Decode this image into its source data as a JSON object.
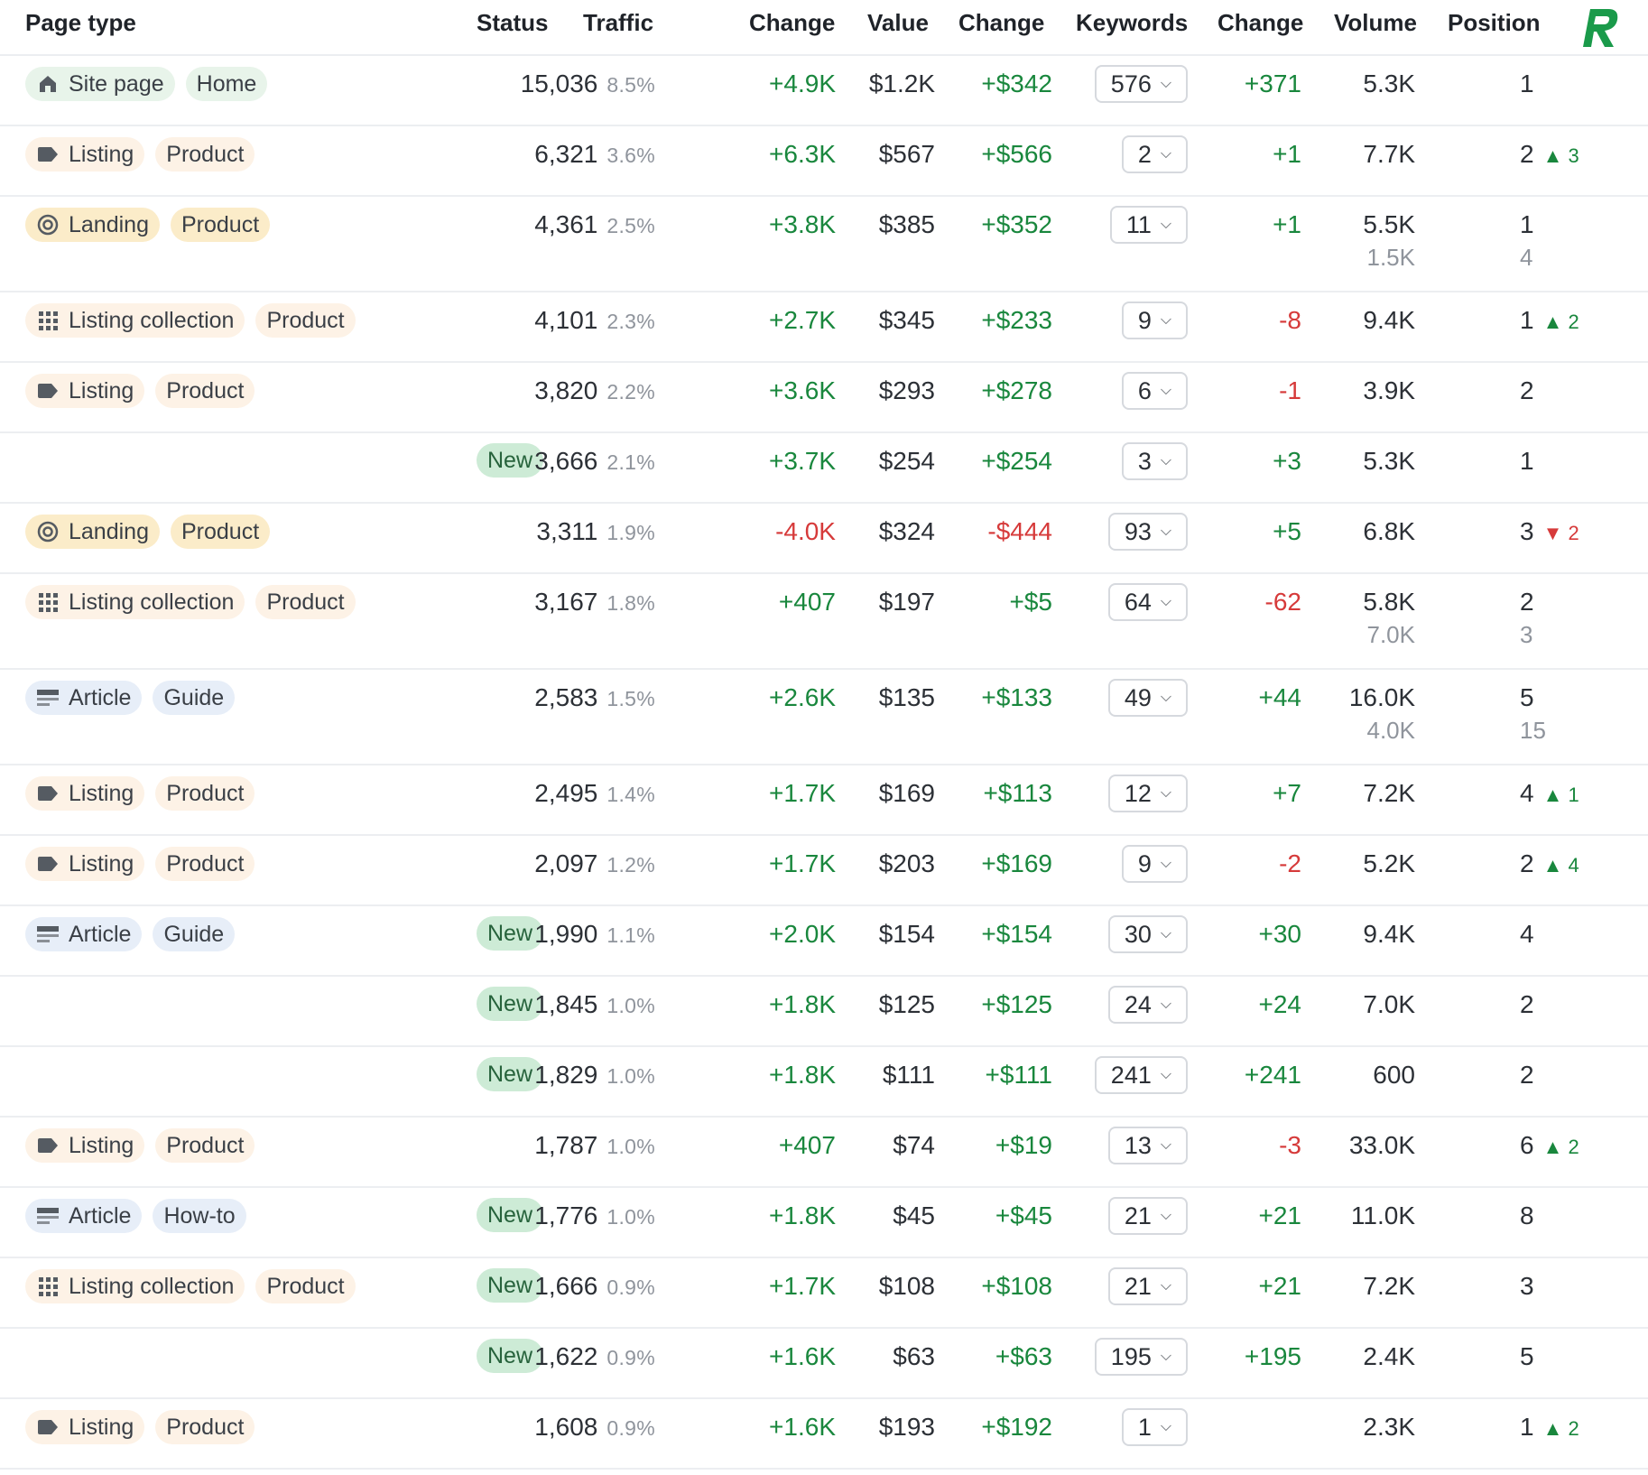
{
  "header": {
    "page_type": "Page type",
    "status": "Status",
    "traffic": "Traffic",
    "change1": "Change",
    "value": "Value",
    "change2": "Change",
    "keywords": "Keywords",
    "change3": "Change",
    "volume": "Volume",
    "position": "Position"
  },
  "logo": {
    "letter": "R",
    "color": "#1a9a4a"
  },
  "colors": {
    "positive": "#19873d",
    "negative": "#d63a3a",
    "new_badge": "#cdebd6"
  },
  "rows": [
    {
      "tag1": "Site page",
      "tag2": "Home",
      "icon": "home-icon",
      "status": "",
      "traffic": "15,036",
      "pct": "8.5%",
      "change": "+4.9K",
      "value": "$1.2K",
      "value_change": "+$342",
      "keywords": "576",
      "kw_change": "+371",
      "volume": "5.3K",
      "volume2": "",
      "position": "1",
      "position2": "",
      "pos_delta": ""
    },
    {
      "tag1": "Listing",
      "tag2": "Product",
      "icon": "tag-icon",
      "status": "",
      "traffic": "6,321",
      "pct": "3.6%",
      "change": "+6.3K",
      "value": "$567",
      "value_change": "+$566",
      "keywords": "2",
      "kw_change": "+1",
      "volume": "7.7K",
      "volume2": "",
      "position": "2",
      "position2": "",
      "pos_delta": "3"
    },
    {
      "tag1": "Landing",
      "tag2": "Product",
      "icon": "target-icon",
      "status": "",
      "traffic": "4,361",
      "pct": "2.5%",
      "change": "+3.8K",
      "value": "$385",
      "value_change": "+$352",
      "keywords": "11",
      "kw_change": "+1",
      "volume": "5.5K",
      "volume2": "1.5K",
      "position": "1",
      "position2": "4",
      "pos_delta": ""
    },
    {
      "tag1": "Listing collection",
      "tag2": "Product",
      "icon": "grid-icon",
      "status": "",
      "traffic": "4,101",
      "pct": "2.3%",
      "change": "+2.7K",
      "value": "$345",
      "value_change": "+$233",
      "keywords": "9",
      "kw_change": "-8",
      "volume": "9.4K",
      "volume2": "",
      "position": "1",
      "position2": "",
      "pos_delta": "2"
    },
    {
      "tag1": "Listing",
      "tag2": "Product",
      "icon": "tag-icon",
      "status": "",
      "traffic": "3,820",
      "pct": "2.2%",
      "change": "+3.6K",
      "value": "$293",
      "value_change": "+$278",
      "keywords": "6",
      "kw_change": "-1",
      "volume": "3.9K",
      "volume2": "",
      "position": "2",
      "position2": "",
      "pos_delta": ""
    },
    {
      "tag1": "",
      "tag2": "",
      "icon": "",
      "status": "New",
      "traffic": "3,666",
      "pct": "2.1%",
      "change": "+3.7K",
      "value": "$254",
      "value_change": "+$254",
      "keywords": "3",
      "kw_change": "+3",
      "volume": "5.3K",
      "volume2": "",
      "position": "1",
      "position2": "",
      "pos_delta": ""
    },
    {
      "tag1": "Landing",
      "tag2": "Product",
      "icon": "target-icon",
      "status": "",
      "traffic": "3,311",
      "pct": "1.9%",
      "change": "-4.0K",
      "value": "$324",
      "value_change": "-$444",
      "keywords": "93",
      "kw_change": "+5",
      "volume": "6.8K",
      "volume2": "",
      "position": "3",
      "position2": "",
      "pos_delta": "2",
      "pos_dir": "down"
    },
    {
      "tag1": "Listing collection",
      "tag2": "Product",
      "icon": "grid-icon",
      "status": "",
      "traffic": "3,167",
      "pct": "1.8%",
      "change": "+407",
      "value": "$197",
      "value_change": "+$5",
      "keywords": "64",
      "kw_change": "-62",
      "volume": "5.8K",
      "volume2": "7.0K",
      "position": "2",
      "position2": "3",
      "pos_delta": ""
    },
    {
      "tag1": "Article",
      "tag2": "Guide",
      "icon": "article-icon",
      "status": "",
      "traffic": "2,583",
      "pct": "1.5%",
      "change": "+2.6K",
      "value": "$135",
      "value_change": "+$133",
      "keywords": "49",
      "kw_change": "+44",
      "volume": "16.0K",
      "volume2": "4.0K",
      "position": "5",
      "position2": "15",
      "pos_delta": ""
    },
    {
      "tag1": "Listing",
      "tag2": "Product",
      "icon": "tag-icon",
      "status": "",
      "traffic": "2,495",
      "pct": "1.4%",
      "change": "+1.7K",
      "value": "$169",
      "value_change": "+$113",
      "keywords": "12",
      "kw_change": "+7",
      "volume": "7.2K",
      "volume2": "",
      "position": "4",
      "position2": "",
      "pos_delta": "1"
    },
    {
      "tag1": "Listing",
      "tag2": "Product",
      "icon": "tag-icon",
      "status": "",
      "traffic": "2,097",
      "pct": "1.2%",
      "change": "+1.7K",
      "value": "$203",
      "value_change": "+$169",
      "keywords": "9",
      "kw_change": "-2",
      "volume": "5.2K",
      "volume2": "",
      "position": "2",
      "position2": "",
      "pos_delta": "4"
    },
    {
      "tag1": "Article",
      "tag2": "Guide",
      "icon": "article-icon",
      "status": "New",
      "traffic": "1,990",
      "pct": "1.1%",
      "change": "+2.0K",
      "value": "$154",
      "value_change": "+$154",
      "keywords": "30",
      "kw_change": "+30",
      "volume": "9.4K",
      "volume2": "",
      "position": "4",
      "position2": "",
      "pos_delta": ""
    },
    {
      "tag1": "",
      "tag2": "",
      "icon": "",
      "status": "New",
      "traffic": "1,845",
      "pct": "1.0%",
      "change": "+1.8K",
      "value": "$125",
      "value_change": "+$125",
      "keywords": "24",
      "kw_change": "+24",
      "volume": "7.0K",
      "volume2": "",
      "position": "2",
      "position2": "",
      "pos_delta": ""
    },
    {
      "tag1": "",
      "tag2": "",
      "icon": "",
      "status": "New",
      "traffic": "1,829",
      "pct": "1.0%",
      "change": "+1.8K",
      "value": "$111",
      "value_change": "+$111",
      "keywords": "241",
      "kw_change": "+241",
      "volume": "600",
      "volume2": "",
      "position": "2",
      "position2": "",
      "pos_delta": ""
    },
    {
      "tag1": "Listing",
      "tag2": "Product",
      "icon": "tag-icon",
      "status": "",
      "traffic": "1,787",
      "pct": "1.0%",
      "change": "+407",
      "value": "$74",
      "value_change": "+$19",
      "keywords": "13",
      "kw_change": "-3",
      "volume": "33.0K",
      "volume2": "",
      "position": "6",
      "position2": "",
      "pos_delta": "2"
    },
    {
      "tag1": "Article",
      "tag2": "How-to",
      "icon": "article-icon",
      "status": "New",
      "traffic": "1,776",
      "pct": "1.0%",
      "change": "+1.8K",
      "value": "$45",
      "value_change": "+$45",
      "keywords": "21",
      "kw_change": "+21",
      "volume": "11.0K",
      "volume2": "",
      "position": "8",
      "position2": "",
      "pos_delta": ""
    },
    {
      "tag1": "Listing collection",
      "tag2": "Product",
      "icon": "grid-icon",
      "status": "New",
      "traffic": "1,666",
      "pct": "0.9%",
      "change": "+1.7K",
      "value": "$108",
      "value_change": "+$108",
      "keywords": "21",
      "kw_change": "+21",
      "volume": "7.2K",
      "volume2": "",
      "position": "3",
      "position2": "",
      "pos_delta": ""
    },
    {
      "tag1": "",
      "tag2": "",
      "icon": "",
      "status": "New",
      "traffic": "1,622",
      "pct": "0.9%",
      "change": "+1.6K",
      "value": "$63",
      "value_change": "+$63",
      "keywords": "195",
      "kw_change": "+195",
      "volume": "2.4K",
      "volume2": "",
      "position": "5",
      "position2": "",
      "pos_delta": ""
    },
    {
      "tag1": "Listing",
      "tag2": "Product",
      "icon": "tag-icon",
      "status": "",
      "traffic": "1,608",
      "pct": "0.9%",
      "change": "+1.6K",
      "value": "$193",
      "value_change": "+$192",
      "keywords": "1",
      "kw_change": "",
      "volume": "2.3K",
      "volume2": "",
      "position": "1",
      "position2": "",
      "pos_delta": "2"
    }
  ]
}
